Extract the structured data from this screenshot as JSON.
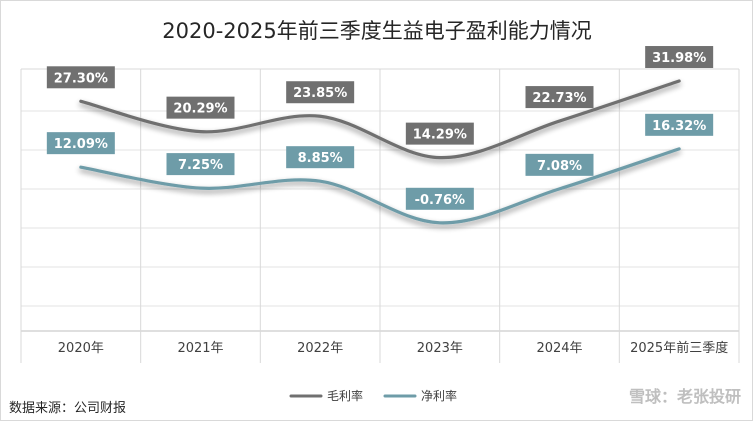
{
  "chart_data": {
    "type": "line",
    "title": "2020-2025年前三季度生益电子盈利能力情况",
    "categories": [
      "2020年",
      "2021年",
      "2022年",
      "2023年",
      "2024年",
      "2025年前三季度"
    ],
    "series": [
      {
        "name": "毛利率",
        "values": [
          27.3,
          20.29,
          23.85,
          14.29,
          22.73,
          31.98
        ],
        "labels": [
          "27.30%",
          "20.29%",
          "23.85%",
          "14.29%",
          "22.73%",
          "31.98%"
        ],
        "color": "#707070"
      },
      {
        "name": "净利率",
        "values": [
          12.09,
          7.25,
          8.85,
          -0.76,
          7.08,
          16.32
        ],
        "labels": [
          "12.09%",
          "7.25%",
          "8.85%",
          "-0.76%",
          "7.08%",
          "16.32%"
        ],
        "color": "#6e9ca8"
      }
    ],
    "smooth": true,
    "grid": true,
    "legend_position": "bottom-center"
  },
  "source_text": "数据来源：公司财报",
  "watermark": "雪球：老张投研"
}
